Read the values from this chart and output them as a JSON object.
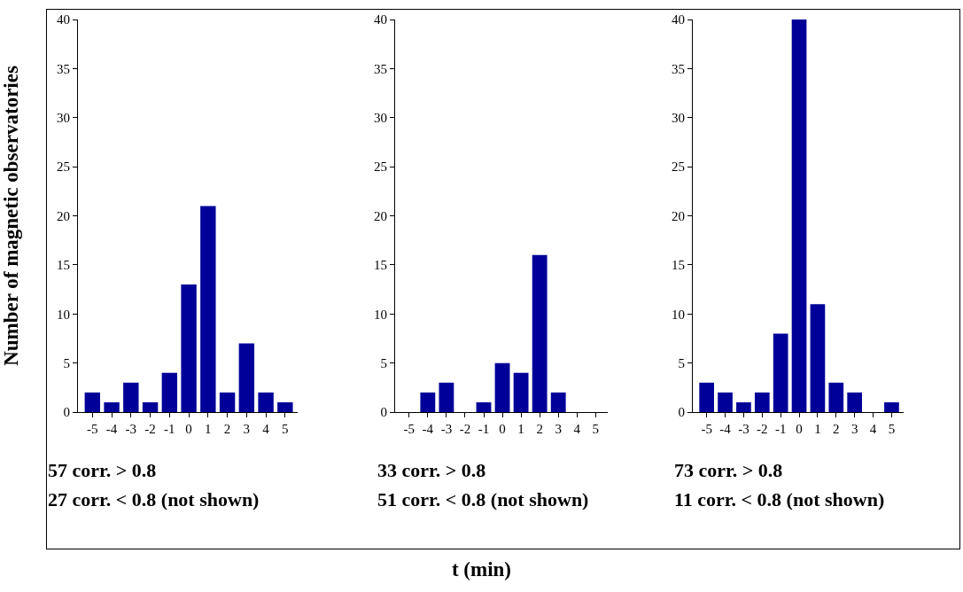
{
  "chart_data": [
    {
      "type": "bar",
      "ylabel": "Number of magnetic observatories",
      "categories": [
        "-5",
        "-4",
        "-3",
        "-2",
        "-1",
        "0",
        "1",
        "2",
        "3",
        "4",
        "5"
      ],
      "values": [
        2,
        1,
        3,
        1,
        4,
        13,
        21,
        2,
        7,
        2,
        1
      ],
      "color": "#000099",
      "ylim": [
        0,
        40
      ],
      "yticks": [
        0,
        5,
        10,
        15,
        20,
        25,
        30,
        35,
        40
      ],
      "grid": false,
      "annotations": [
        "57 corr. > 0.8",
        "27 corr. < 0.8 (not shown)"
      ]
    },
    {
      "type": "bar",
      "xlabel": "t (min)",
      "categories": [
        "-5",
        "-4",
        "-3",
        "-2",
        "-1",
        "0",
        "1",
        "2",
        "3",
        "4",
        "5"
      ],
      "values": [
        0,
        2,
        3,
        0,
        1,
        5,
        4,
        16,
        2,
        0,
        0
      ],
      "color": "#000099",
      "ylim": [
        0,
        40
      ],
      "yticks": [
        0,
        5,
        10,
        15,
        20,
        25,
        30,
        35,
        40
      ],
      "grid": false,
      "annotations": [
        "33 corr. > 0.8",
        "51 corr. < 0.8 (not shown)"
      ]
    },
    {
      "type": "bar",
      "categories": [
        "-5",
        "-4",
        "-3",
        "-2",
        "-1",
        "0",
        "1",
        "2",
        "3",
        "4",
        "5"
      ],
      "values": [
        3,
        2,
        1,
        2,
        8,
        40,
        11,
        3,
        2,
        0,
        1
      ],
      "color": "#000099",
      "ylim": [
        0,
        40
      ],
      "yticks": [
        0,
        5,
        10,
        15,
        20,
        25,
        30,
        35,
        40
      ],
      "grid": false,
      "annotations": [
        "73 corr. > 0.8",
        "11 corr. < 0.8 (not shown)"
      ]
    }
  ]
}
